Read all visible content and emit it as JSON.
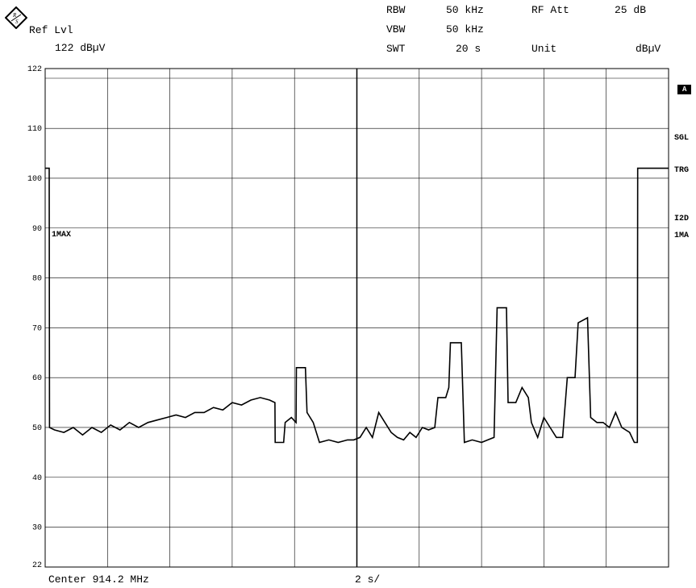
{
  "header": {
    "ref_lvl_label": "Ref Lvl",
    "ref_lvl_value": "122 dBµV",
    "rbw_label": "RBW",
    "rbw_value": "50 kHz",
    "vbw_label": "VBW",
    "vbw_value": "50 kHz",
    "swt_label": "SWT",
    "swt_value": "20 s",
    "rf_att_label": "RF Att",
    "rf_att_value": "25 dB",
    "unit_label": "Unit",
    "unit_value": "dBµV"
  },
  "footer": {
    "center": "Center 914.2 MHz",
    "sweep_per_div": "2 s/"
  },
  "side_labels": {
    "a_box": "A",
    "sgl": "SGL",
    "trg": "TRG",
    "i2d": "I2D",
    "max": "1MA"
  },
  "trace_label": "1MAX",
  "icons": {
    "logo": "rohde-schwarz-logo-icon"
  },
  "chart_data": {
    "type": "line",
    "ylim": [
      22,
      122
    ],
    "xlim": [
      0,
      20
    ],
    "y_ticks": [
      22,
      30,
      40,
      50,
      60,
      70,
      80,
      90,
      100,
      110,
      122
    ],
    "x_divisions": 10,
    "grid": true,
    "series": [
      {
        "values": [
          [
            0.0,
            102
          ],
          [
            0.13,
            102
          ],
          [
            0.14,
            50
          ],
          [
            0.3,
            49.5
          ],
          [
            0.6,
            49
          ],
          [
            0.9,
            50
          ],
          [
            1.2,
            48.5
          ],
          [
            1.5,
            50
          ],
          [
            1.8,
            49
          ],
          [
            2.1,
            50.5
          ],
          [
            2.4,
            49.5
          ],
          [
            2.7,
            51
          ],
          [
            3.0,
            50
          ],
          [
            3.3,
            51
          ],
          [
            3.6,
            51.5
          ],
          [
            3.9,
            52
          ],
          [
            4.2,
            52.5
          ],
          [
            4.5,
            52
          ],
          [
            4.8,
            53
          ],
          [
            5.1,
            53
          ],
          [
            5.4,
            54
          ],
          [
            5.7,
            53.5
          ],
          [
            6.0,
            55
          ],
          [
            6.3,
            54.5
          ],
          [
            6.6,
            55.5
          ],
          [
            6.9,
            56
          ],
          [
            7.2,
            55.5
          ],
          [
            7.37,
            55
          ],
          [
            7.38,
            47
          ],
          [
            7.65,
            47
          ],
          [
            7.7,
            51
          ],
          [
            7.9,
            52
          ],
          [
            8.05,
            51
          ],
          [
            8.06,
            62
          ],
          [
            8.35,
            62
          ],
          [
            8.4,
            53
          ],
          [
            8.6,
            51
          ],
          [
            8.8,
            47
          ],
          [
            9.1,
            47.5
          ],
          [
            9.4,
            47
          ],
          [
            9.7,
            47.5
          ],
          [
            9.9,
            47.5
          ],
          [
            10.1,
            48
          ],
          [
            10.3,
            50
          ],
          [
            10.5,
            48
          ],
          [
            10.7,
            53
          ],
          [
            10.9,
            51
          ],
          [
            11.1,
            49
          ],
          [
            11.3,
            48
          ],
          [
            11.5,
            47.5
          ],
          [
            11.7,
            49
          ],
          [
            11.9,
            48
          ],
          [
            12.1,
            50
          ],
          [
            12.3,
            49.5
          ],
          [
            12.5,
            50
          ],
          [
            12.6,
            56
          ],
          [
            12.85,
            56
          ],
          [
            12.95,
            58
          ],
          [
            13.0,
            67
          ],
          [
            13.35,
            67
          ],
          [
            13.45,
            47
          ],
          [
            13.7,
            47.5
          ],
          [
            14.0,
            47
          ],
          [
            14.2,
            47.5
          ],
          [
            14.4,
            48
          ],
          [
            14.5,
            74
          ],
          [
            14.8,
            74
          ],
          [
            14.85,
            55
          ],
          [
            15.1,
            55
          ],
          [
            15.3,
            58
          ],
          [
            15.5,
            56
          ],
          [
            15.6,
            51
          ],
          [
            15.8,
            48
          ],
          [
            16.0,
            52
          ],
          [
            16.2,
            50
          ],
          [
            16.4,
            48
          ],
          [
            16.6,
            48
          ],
          [
            16.75,
            60
          ],
          [
            17.0,
            60
          ],
          [
            17.1,
            71
          ],
          [
            17.4,
            72
          ],
          [
            17.5,
            52
          ],
          [
            17.7,
            51
          ],
          [
            17.9,
            51
          ],
          [
            18.1,
            50
          ],
          [
            18.3,
            53
          ],
          [
            18.5,
            50
          ],
          [
            18.75,
            49
          ],
          [
            18.9,
            47
          ],
          [
            19.0,
            47
          ],
          [
            19.01,
            102
          ],
          [
            20.0,
            102
          ]
        ]
      }
    ]
  }
}
